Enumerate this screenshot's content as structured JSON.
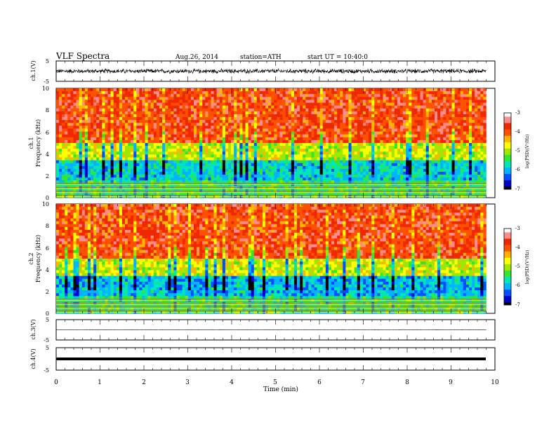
{
  "header": {
    "title": "VLF  Spectra",
    "date": "Aug.26, 2014",
    "station": "station=ATH",
    "start": "start  UT =   10:40:0"
  },
  "chart_data": [
    {
      "type": "line",
      "name": "ch1-waveform",
      "ylabel": "ch.1(V)",
      "ylim": [
        -5,
        5
      ],
      "yticks": [
        "5",
        "-5"
      ],
      "xlim": [
        0,
        10
      ],
      "level": 0,
      "amplitude": 1.3
    },
    {
      "type": "heatmap",
      "name": "ch1-spectrogram",
      "ylabel_channel": "ch.1",
      "ylabel": "Frequency  (kHz)",
      "ylim": [
        0,
        10
      ],
      "yticks": [
        "0",
        "2",
        "4",
        "6",
        "8",
        "10"
      ],
      "xlim": [
        0,
        9.8
      ],
      "bands_khz": [
        {
          "from": 0,
          "to": 1.5,
          "level": -5.5
        },
        {
          "from": 1.5,
          "to": 3.5,
          "level": -5.8
        },
        {
          "from": 3.5,
          "to": 5,
          "level": -4.8
        },
        {
          "from": 5,
          "to": 10,
          "level": -3.8
        }
      ],
      "colorbar": {
        "label": "log(PSD)(V²/Hz)",
        "ticks": [
          "-3",
          "-4",
          "-5",
          "-6",
          "-7"
        ],
        "range": [
          -7,
          -3
        ]
      }
    },
    {
      "type": "heatmap",
      "name": "ch2-spectrogram",
      "ylabel_channel": "ch.2",
      "ylabel": "Frequency  (kHz)",
      "ylim": [
        0,
        10
      ],
      "yticks": [
        "0",
        "2",
        "4",
        "6",
        "8",
        "10"
      ],
      "xlim": [
        0,
        9.8
      ],
      "bands_khz": [
        {
          "from": 0,
          "to": 1.5,
          "level": -5.5
        },
        {
          "from": 1.5,
          "to": 3.5,
          "level": -5.9
        },
        {
          "from": 3.5,
          "to": 5,
          "level": -4.8
        },
        {
          "from": 5,
          "to": 10,
          "level": -3.8
        }
      ],
      "colorbar": {
        "label": "log(PSD)(V²/Hz)",
        "ticks": [
          "-3",
          "-4",
          "-5",
          "-6",
          "-7"
        ],
        "range": [
          -7,
          -3
        ]
      }
    },
    {
      "type": "line",
      "name": "ch3-waveform",
      "ylabel": "ch.3(V)",
      "ylim": [
        -5,
        5
      ],
      "yticks": [
        "5",
        "-5"
      ],
      "xlim": [
        0,
        10
      ],
      "level": 0,
      "amplitude": 0.08
    },
    {
      "type": "line",
      "name": "ch4-waveform",
      "ylabel": "ch.4(V)",
      "ylim": [
        -5,
        5
      ],
      "yticks": [
        "5",
        "-5"
      ],
      "xlim": [
        0,
        10
      ],
      "level": 0,
      "amplitude": 0
    }
  ],
  "xaxis": {
    "label": "Time  (min)",
    "ticks": [
      "0",
      "1",
      "2",
      "3",
      "4",
      "5",
      "6",
      "7",
      "8",
      "9",
      "10"
    ]
  },
  "colormap": [
    "#000000",
    "#0000c8",
    "#0050ff",
    "#00b4ff",
    "#00e6b4",
    "#32e632",
    "#a0e600",
    "#ffff00",
    "#ffb400",
    "#ff5000",
    "#f02800",
    "#ff8c8c",
    "#ffffff"
  ]
}
